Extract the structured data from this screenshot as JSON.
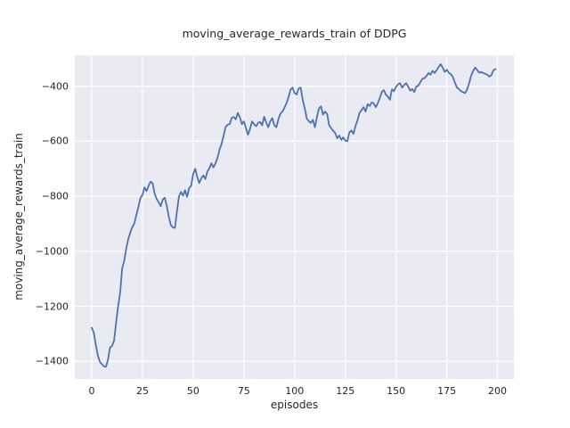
{
  "title": "moving_average_rewards_train of DDPG",
  "xlabel": "episodes",
  "ylabel": "moving_average_rewards_train",
  "colors": {
    "figure_bg": "#ffffff",
    "axes_bg": "#eaeaf2",
    "grid": "#ffffff",
    "line": "#4c72b0",
    "text": "#262626"
  },
  "chart_data": {
    "type": "line",
    "title": "moving_average_rewards_train of DDPG",
    "xlabel": "episodes",
    "ylabel": "moving_average_rewards_train",
    "legend": null,
    "grid": true,
    "xlim": [
      -8.35,
      208.1
    ],
    "ylim": [
      -1464,
      -287.5
    ],
    "x_ticks": [
      0,
      25,
      50,
      75,
      100,
      125,
      150,
      175,
      200
    ],
    "x_tick_labels": [
      "0",
      "25",
      "50",
      "75",
      "100",
      "125",
      "150",
      "175",
      "200"
    ],
    "y_ticks": [
      -400,
      -600,
      -800,
      -1000,
      -1200,
      -1400
    ],
    "y_tick_labels": [
      "−400",
      "−600",
      "−800",
      "−1000",
      "−1200",
      "−1400"
    ],
    "series": [
      {
        "name": "moving_average_rewards_train",
        "x_start": 0,
        "x_step": 1,
        "values": [
          -1278,
          -1295,
          -1340,
          -1378,
          -1402,
          -1410,
          -1418,
          -1420,
          -1394,
          -1350,
          -1344,
          -1325,
          -1260,
          -1200,
          -1150,
          -1062,
          -1035,
          -990,
          -955,
          -932,
          -912,
          -898,
          -868,
          -838,
          -806,
          -795,
          -768,
          -781,
          -762,
          -747,
          -752,
          -790,
          -810,
          -822,
          -836,
          -812,
          -805,
          -835,
          -875,
          -905,
          -913,
          -915,
          -855,
          -800,
          -784,
          -798,
          -778,
          -802,
          -770,
          -762,
          -719,
          -700,
          -730,
          -752,
          -735,
          -724,
          -737,
          -710,
          -698,
          -680,
          -695,
          -680,
          -660,
          -630,
          -610,
          -580,
          -548,
          -540,
          -538,
          -515,
          -512,
          -520,
          -497,
          -512,
          -538,
          -528,
          -552,
          -576,
          -556,
          -528,
          -538,
          -545,
          -533,
          -530,
          -542,
          -511,
          -532,
          -549,
          -528,
          -516,
          -542,
          -549,
          -520,
          -500,
          -492,
          -478,
          -462,
          -440,
          -412,
          -405,
          -425,
          -430,
          -408,
          -405,
          -450,
          -480,
          -517,
          -527,
          -533,
          -522,
          -549,
          -512,
          -481,
          -473,
          -503,
          -492,
          -500,
          -541,
          -552,
          -562,
          -570,
          -589,
          -579,
          -595,
          -586,
          -598,
          -600,
          -568,
          -561,
          -573,
          -545,
          -524,
          -497,
          -487,
          -476,
          -492,
          -465,
          -472,
          -459,
          -462,
          -476,
          -462,
          -443,
          -421,
          -414,
          -431,
          -438,
          -449,
          -411,
          -418,
          -402,
          -393,
          -389,
          -405,
          -396,
          -389,
          -401,
          -416,
          -410,
          -421,
          -401,
          -398,
          -385,
          -373,
          -371,
          -363,
          -352,
          -358,
          -344,
          -352,
          -342,
          -330,
          -320,
          -332,
          -348,
          -340,
          -351,
          -356,
          -366,
          -386,
          -405,
          -410,
          -418,
          -421,
          -425,
          -412,
          -390,
          -362,
          -345,
          -332,
          -341,
          -351,
          -348,
          -352,
          -355,
          -358,
          -365,
          -360,
          -342,
          -338
        ]
      }
    ]
  }
}
